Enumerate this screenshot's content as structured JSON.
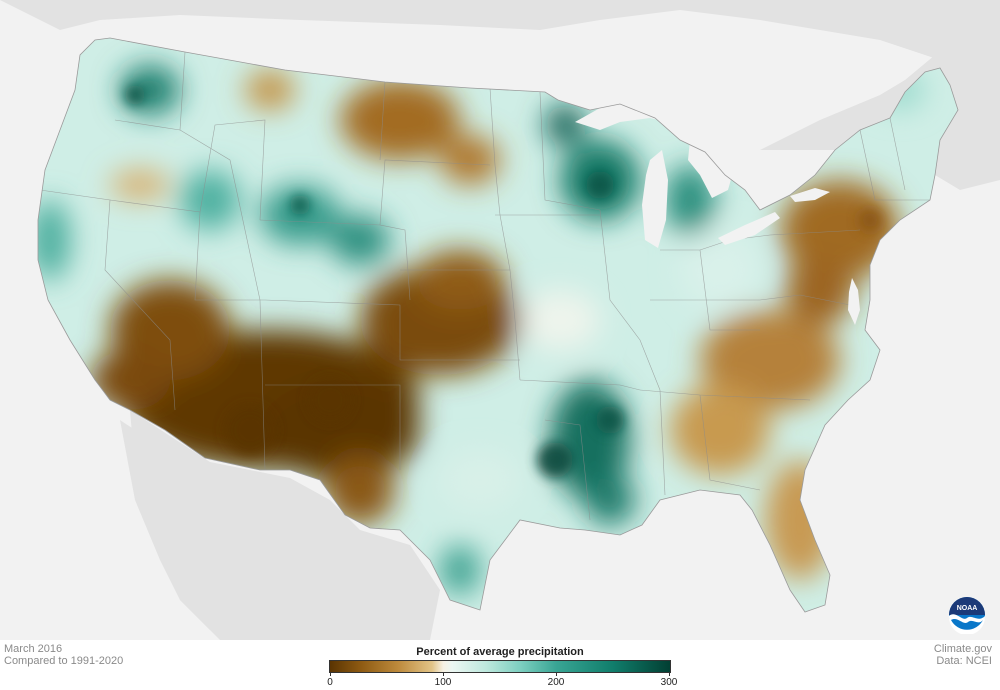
{
  "footer": {
    "date_label": "March 2016",
    "comparison_label": "Compared to 1991-2020",
    "source_site": "Climate.gov",
    "data_credit": "Data: NCEI"
  },
  "legend": {
    "title": "Percent of average precipitation",
    "ticks": [
      "0",
      "100",
      "200",
      "300"
    ],
    "min": 0,
    "max": 300,
    "colors": {
      "very_dry": "#5a3402",
      "dry": "#bd8a3c",
      "normal": "#f6f1e3",
      "wet": "#39a594",
      "very_wet": "#023f33"
    }
  },
  "logo": {
    "text": "NOAA",
    "icon": "noaa-logo-icon"
  }
}
